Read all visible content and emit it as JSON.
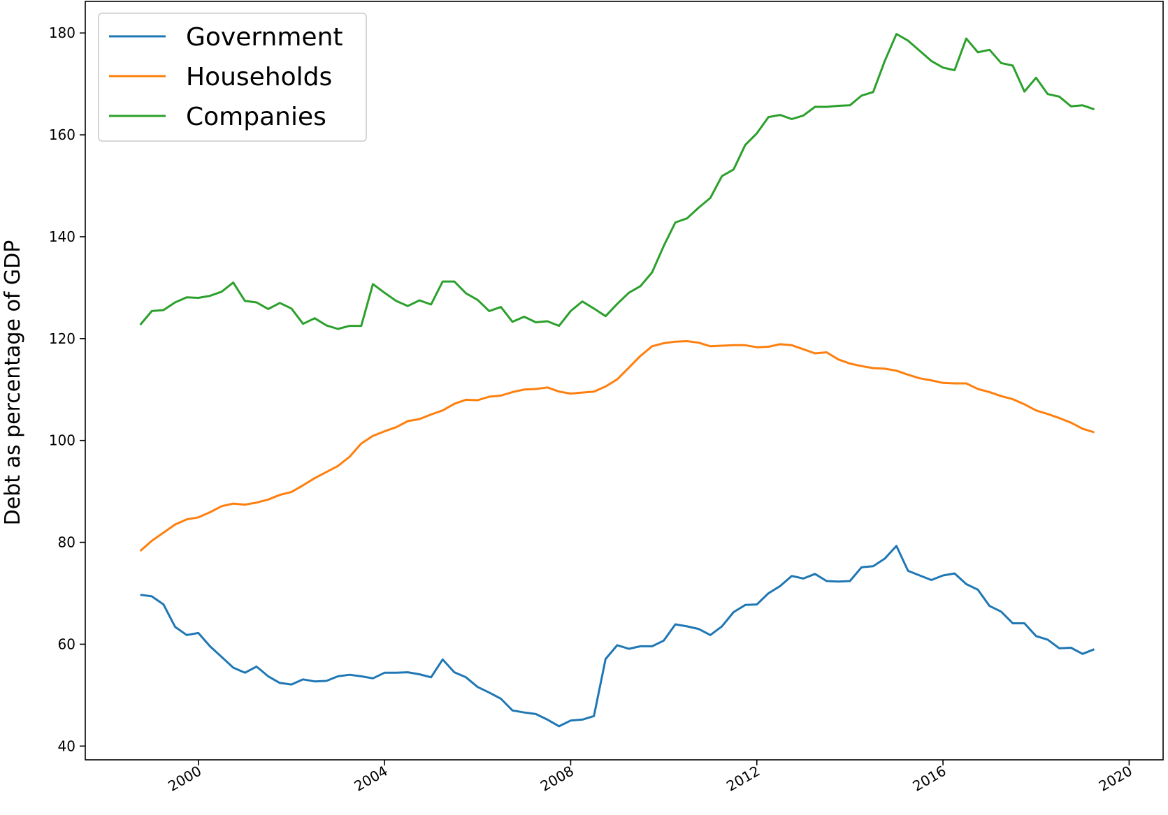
{
  "chart_data": {
    "type": "line",
    "ylabel": "Debt as percentage of GDP",
    "xlabel": "",
    "title": "",
    "xlim": [
      1997.57,
      2020.73
    ],
    "ylim": [
      37.3,
      186.2
    ],
    "x_ticks": [
      2000,
      2004,
      2008,
      2012,
      2016,
      2020
    ],
    "x_tick_labels": [
      "2000",
      "2004",
      "2008",
      "2012",
      "2016",
      "2020"
    ],
    "y_ticks": [
      40,
      60,
      80,
      100,
      120,
      140,
      160,
      180
    ],
    "y_tick_labels": [
      "40",
      "60",
      "80",
      "100",
      "120",
      "140",
      "160",
      "180"
    ],
    "grid": false,
    "legend": "top-left",
    "series": [
      {
        "name": "Government",
        "color": "#1f77b4",
        "points": [
          [
            1998.75,
            69.7
          ],
          [
            1999.0,
            69.4
          ],
          [
            1999.25,
            67.8
          ],
          [
            1999.5,
            63.4
          ],
          [
            1999.75,
            61.8
          ],
          [
            2000.0,
            62.2
          ],
          [
            2000.25,
            59.6
          ],
          [
            2000.5,
            57.5
          ],
          [
            2000.75,
            55.4
          ],
          [
            2001.0,
            54.4
          ],
          [
            2001.25,
            55.6
          ],
          [
            2001.5,
            53.7
          ],
          [
            2001.75,
            52.4
          ],
          [
            2002.0,
            52.1
          ],
          [
            2002.25,
            53.1
          ],
          [
            2002.5,
            52.7
          ],
          [
            2002.75,
            52.8
          ],
          [
            2003.0,
            53.7
          ],
          [
            2003.25,
            54.0
          ],
          [
            2003.5,
            53.7
          ],
          [
            2003.75,
            53.3
          ],
          [
            2004.0,
            54.4
          ],
          [
            2004.25,
            54.4
          ],
          [
            2004.5,
            54.5
          ],
          [
            2004.75,
            54.1
          ],
          [
            2005.0,
            53.5
          ],
          [
            2005.25,
            57.0
          ],
          [
            2005.5,
            54.5
          ],
          [
            2005.75,
            53.5
          ],
          [
            2006.0,
            51.6
          ],
          [
            2006.25,
            50.5
          ],
          [
            2006.5,
            49.3
          ],
          [
            2006.75,
            47.0
          ],
          [
            2007.0,
            46.6
          ],
          [
            2007.25,
            46.3
          ],
          [
            2007.5,
            45.2
          ],
          [
            2007.75,
            43.9
          ],
          [
            2008.0,
            45.0
          ],
          [
            2008.25,
            45.2
          ],
          [
            2008.5,
            45.9
          ],
          [
            2008.75,
            57.1
          ],
          [
            2009.0,
            59.8
          ],
          [
            2009.25,
            59.1
          ],
          [
            2009.5,
            59.6
          ],
          [
            2009.75,
            59.6
          ],
          [
            2010.0,
            60.7
          ],
          [
            2010.25,
            63.9
          ],
          [
            2010.5,
            63.5
          ],
          [
            2010.75,
            63.0
          ],
          [
            2011.0,
            61.8
          ],
          [
            2011.25,
            63.5
          ],
          [
            2011.5,
            66.3
          ],
          [
            2011.75,
            67.7
          ],
          [
            2012.0,
            67.8
          ],
          [
            2012.25,
            70.0
          ],
          [
            2012.5,
            71.4
          ],
          [
            2012.75,
            73.4
          ],
          [
            2013.0,
            72.9
          ],
          [
            2013.25,
            73.8
          ],
          [
            2013.5,
            72.4
          ],
          [
            2013.75,
            72.3
          ],
          [
            2014.0,
            72.4
          ],
          [
            2014.25,
            75.1
          ],
          [
            2014.5,
            75.3
          ],
          [
            2014.75,
            76.8
          ],
          [
            2015.0,
            79.3
          ],
          [
            2015.25,
            74.4
          ],
          [
            2015.5,
            73.5
          ],
          [
            2015.75,
            72.6
          ],
          [
            2016.0,
            73.5
          ],
          [
            2016.25,
            73.9
          ],
          [
            2016.5,
            71.8
          ],
          [
            2016.75,
            70.7
          ],
          [
            2017.0,
            67.5
          ],
          [
            2017.25,
            66.4
          ],
          [
            2017.5,
            64.1
          ],
          [
            2017.75,
            64.1
          ],
          [
            2018.0,
            61.6
          ],
          [
            2018.25,
            60.9
          ],
          [
            2018.5,
            59.2
          ],
          [
            2018.75,
            59.3
          ],
          [
            2019.0,
            58.1
          ],
          [
            2019.25,
            59.0
          ]
        ]
      },
      {
        "name": "Households",
        "color": "#ff7f0e",
        "points": [
          [
            1998.75,
            78.3
          ],
          [
            1999.0,
            80.3
          ],
          [
            1999.25,
            81.9
          ],
          [
            1999.5,
            83.5
          ],
          [
            1999.75,
            84.5
          ],
          [
            2000.0,
            84.9
          ],
          [
            2000.25,
            85.9
          ],
          [
            2000.5,
            87.1
          ],
          [
            2000.75,
            87.6
          ],
          [
            2001.0,
            87.4
          ],
          [
            2001.25,
            87.8
          ],
          [
            2001.5,
            88.4
          ],
          [
            2001.75,
            89.3
          ],
          [
            2002.0,
            89.9
          ],
          [
            2002.25,
            91.2
          ],
          [
            2002.5,
            92.6
          ],
          [
            2002.75,
            93.8
          ],
          [
            2003.0,
            95.0
          ],
          [
            2003.25,
            96.8
          ],
          [
            2003.5,
            99.4
          ],
          [
            2003.75,
            100.9
          ],
          [
            2004.0,
            101.8
          ],
          [
            2004.25,
            102.6
          ],
          [
            2004.5,
            103.8
          ],
          [
            2004.75,
            104.2
          ],
          [
            2005.0,
            105.1
          ],
          [
            2005.25,
            105.9
          ],
          [
            2005.5,
            107.2
          ],
          [
            2005.75,
            108.0
          ],
          [
            2006.0,
            107.9
          ],
          [
            2006.25,
            108.6
          ],
          [
            2006.5,
            108.8
          ],
          [
            2006.75,
            109.5
          ],
          [
            2007.0,
            110.0
          ],
          [
            2007.25,
            110.1
          ],
          [
            2007.5,
            110.4
          ],
          [
            2007.75,
            109.6
          ],
          [
            2008.0,
            109.2
          ],
          [
            2008.25,
            109.4
          ],
          [
            2008.5,
            109.6
          ],
          [
            2008.75,
            110.6
          ],
          [
            2009.0,
            112.0
          ],
          [
            2009.25,
            114.3
          ],
          [
            2009.5,
            116.6
          ],
          [
            2009.75,
            118.5
          ],
          [
            2010.0,
            119.1
          ],
          [
            2010.25,
            119.4
          ],
          [
            2010.5,
            119.5
          ],
          [
            2010.75,
            119.2
          ],
          [
            2011.0,
            118.5
          ],
          [
            2011.25,
            118.6
          ],
          [
            2011.5,
            118.7
          ],
          [
            2011.75,
            118.7
          ],
          [
            2012.0,
            118.3
          ],
          [
            2012.25,
            118.4
          ],
          [
            2012.5,
            118.9
          ],
          [
            2012.75,
            118.7
          ],
          [
            2013.0,
            117.9
          ],
          [
            2013.25,
            117.1
          ],
          [
            2013.5,
            117.3
          ],
          [
            2013.75,
            115.9
          ],
          [
            2014.0,
            115.1
          ],
          [
            2014.25,
            114.6
          ],
          [
            2014.5,
            114.2
          ],
          [
            2014.75,
            114.1
          ],
          [
            2015.0,
            113.7
          ],
          [
            2015.25,
            112.9
          ],
          [
            2015.5,
            112.2
          ],
          [
            2015.75,
            111.8
          ],
          [
            2016.0,
            111.3
          ],
          [
            2016.25,
            111.2
          ],
          [
            2016.5,
            111.2
          ],
          [
            2016.75,
            110.1
          ],
          [
            2017.0,
            109.5
          ],
          [
            2017.25,
            108.7
          ],
          [
            2017.5,
            108.1
          ],
          [
            2017.75,
            107.1
          ],
          [
            2018.0,
            105.9
          ],
          [
            2018.25,
            105.2
          ],
          [
            2018.5,
            104.4
          ],
          [
            2018.75,
            103.5
          ],
          [
            2019.0,
            102.3
          ],
          [
            2019.25,
            101.6
          ]
        ]
      },
      {
        "name": "Companies",
        "color": "#2ca02c",
        "points": [
          [
            1998.75,
            122.7
          ],
          [
            1999.0,
            125.4
          ],
          [
            1999.25,
            125.6
          ],
          [
            1999.5,
            127.1
          ],
          [
            1999.75,
            128.1
          ],
          [
            2000.0,
            128.0
          ],
          [
            2000.25,
            128.4
          ],
          [
            2000.5,
            129.2
          ],
          [
            2000.75,
            131.0
          ],
          [
            2001.0,
            127.4
          ],
          [
            2001.25,
            127.1
          ],
          [
            2001.5,
            125.8
          ],
          [
            2001.75,
            127.0
          ],
          [
            2002.0,
            125.9
          ],
          [
            2002.25,
            122.9
          ],
          [
            2002.5,
            124.0
          ],
          [
            2002.75,
            122.6
          ],
          [
            2003.0,
            121.9
          ],
          [
            2003.25,
            122.5
          ],
          [
            2003.5,
            122.5
          ],
          [
            2003.75,
            130.7
          ],
          [
            2004.0,
            129.0
          ],
          [
            2004.25,
            127.4
          ],
          [
            2004.5,
            126.4
          ],
          [
            2004.75,
            127.5
          ],
          [
            2005.0,
            126.7
          ],
          [
            2005.25,
            131.2
          ],
          [
            2005.5,
            131.2
          ],
          [
            2005.75,
            128.9
          ],
          [
            2006.0,
            127.6
          ],
          [
            2006.25,
            125.4
          ],
          [
            2006.5,
            126.2
          ],
          [
            2006.75,
            123.3
          ],
          [
            2007.0,
            124.3
          ],
          [
            2007.25,
            123.2
          ],
          [
            2007.5,
            123.4
          ],
          [
            2007.75,
            122.5
          ],
          [
            2008.0,
            125.4
          ],
          [
            2008.25,
            127.3
          ],
          [
            2008.5,
            125.9
          ],
          [
            2008.75,
            124.4
          ],
          [
            2009.0,
            126.8
          ],
          [
            2009.25,
            129.0
          ],
          [
            2009.5,
            130.3
          ],
          [
            2009.75,
            133.0
          ],
          [
            2010.0,
            138.2
          ],
          [
            2010.25,
            142.8
          ],
          [
            2010.5,
            143.6
          ],
          [
            2010.75,
            145.7
          ],
          [
            2011.0,
            147.6
          ],
          [
            2011.25,
            151.9
          ],
          [
            2011.5,
            153.2
          ],
          [
            2011.75,
            158.0
          ],
          [
            2012.0,
            160.3
          ],
          [
            2012.25,
            163.5
          ],
          [
            2012.5,
            163.9
          ],
          [
            2012.75,
            163.1
          ],
          [
            2013.0,
            163.8
          ],
          [
            2013.25,
            165.5
          ],
          [
            2013.5,
            165.5
          ],
          [
            2013.75,
            165.7
          ],
          [
            2014.0,
            165.8
          ],
          [
            2014.25,
            167.7
          ],
          [
            2014.5,
            168.4
          ],
          [
            2014.75,
            174.5
          ],
          [
            2015.0,
            179.8
          ],
          [
            2015.25,
            178.5
          ],
          [
            2015.5,
            176.5
          ],
          [
            2015.75,
            174.5
          ],
          [
            2016.0,
            173.2
          ],
          [
            2016.25,
            172.7
          ],
          [
            2016.5,
            178.9
          ],
          [
            2016.75,
            176.2
          ],
          [
            2017.0,
            176.7
          ],
          [
            2017.25,
            174.1
          ],
          [
            2017.5,
            173.6
          ],
          [
            2017.75,
            168.5
          ],
          [
            2018.0,
            171.2
          ],
          [
            2018.25,
            168.0
          ],
          [
            2018.5,
            167.5
          ],
          [
            2018.75,
            165.6
          ],
          [
            2019.0,
            165.8
          ],
          [
            2019.25,
            165.0
          ]
        ]
      }
    ]
  }
}
